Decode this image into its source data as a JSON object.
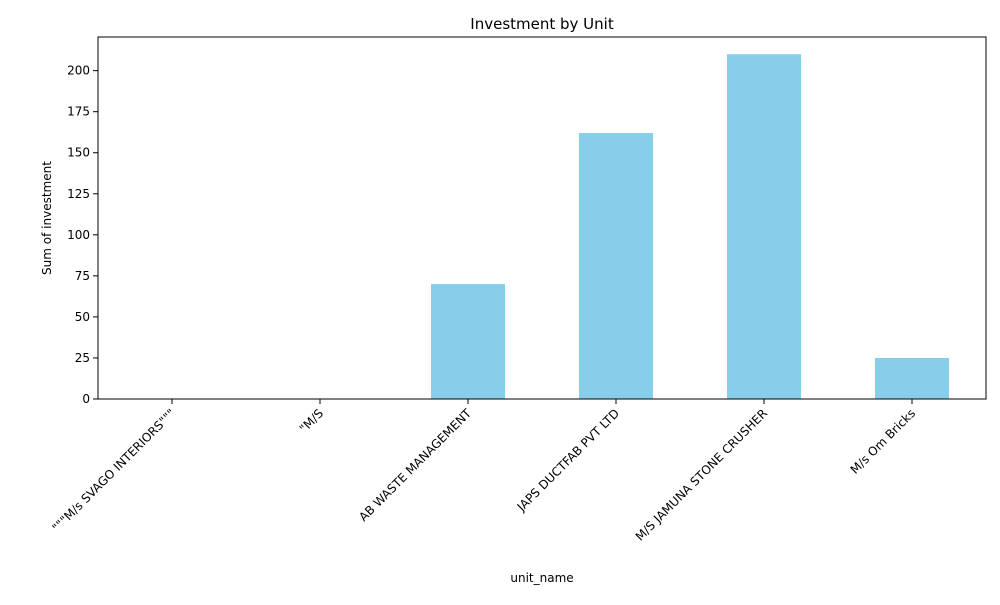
{
  "chart_data": {
    "type": "bar",
    "title": "Investment by Unit",
    "xlabel": "unit_name",
    "ylabel": "Sum of investment",
    "categories": [
      "\"\"\"M/s SVAGO INTERIORS\"\"\"",
      "\"M/S",
      "AB WASTE MANAGEMENT",
      "JAPS DUCTFAB PVT LTD",
      "M/S JAMUNA STONE CRUSHER",
      "M/s Om Bricks"
    ],
    "values": [
      0,
      0,
      70,
      162,
      210,
      25
    ],
    "ylim": [
      0,
      220.5
    ],
    "yticks": [
      0,
      25,
      50,
      75,
      100,
      125,
      150,
      175,
      200
    ],
    "grid": false,
    "bar_color": "#87ceeb"
  }
}
